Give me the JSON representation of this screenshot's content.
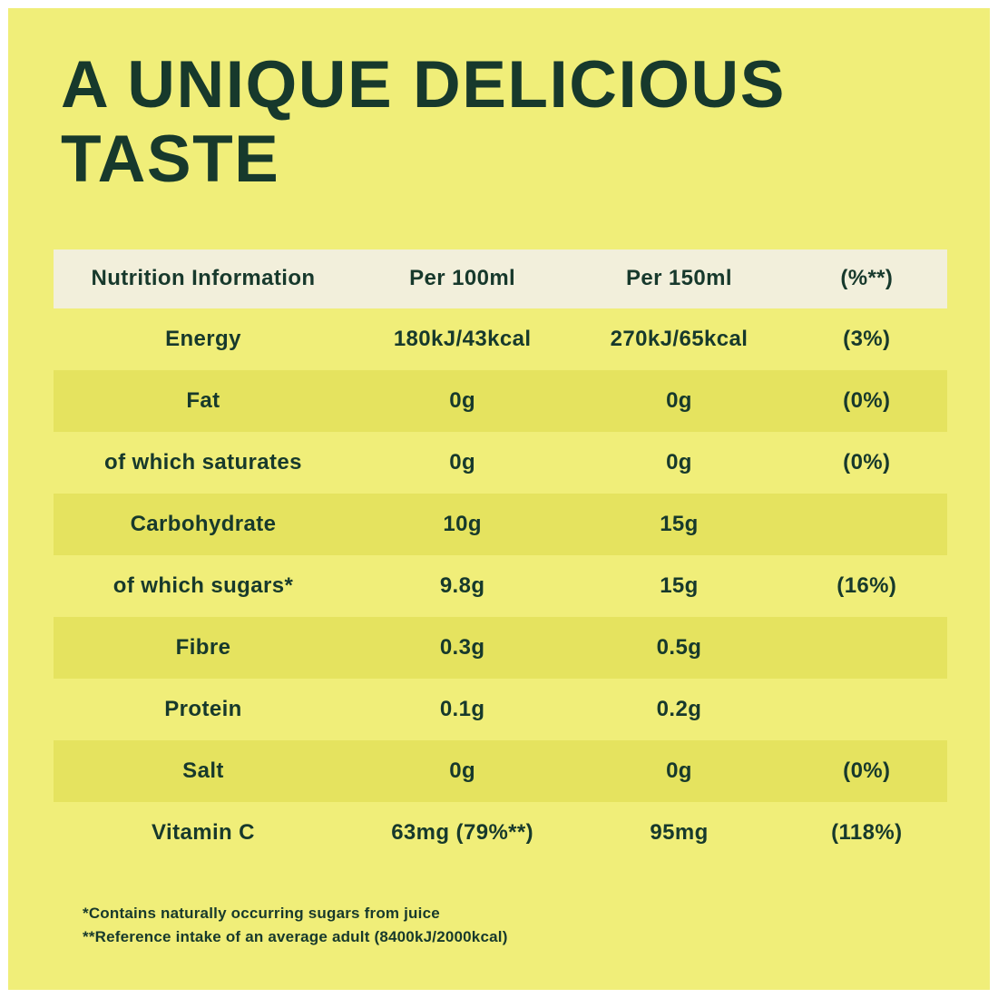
{
  "colors": {
    "background": "#f0ee79",
    "band": "#e5e35f",
    "header_bg": "#f2efdb",
    "text": "#17392c"
  },
  "title": {
    "line1": "A UNIQUE DELICIOUS",
    "line2": "TASTE"
  },
  "table": {
    "headers": [
      "Nutrition Information",
      "Per 100ml",
      "Per 150ml",
      "(%**)"
    ],
    "rows": [
      {
        "label": "Energy",
        "per100": "180kJ/43kcal",
        "per150": "270kJ/65kcal",
        "pct": "(3%)",
        "band": false
      },
      {
        "label": "Fat",
        "per100": "0g",
        "per150": "0g",
        "pct": "(0%)",
        "band": true
      },
      {
        "label": "of which saturates",
        "per100": "0g",
        "per150": "0g",
        "pct": "(0%)",
        "band": false
      },
      {
        "label": "Carbohydrate",
        "per100": "10g",
        "per150": "15g",
        "pct": "",
        "band": true
      },
      {
        "label": "of which sugars*",
        "per100": "9.8g",
        "per150": "15g",
        "pct": "(16%)",
        "band": false
      },
      {
        "label": "Fibre",
        "per100": "0.3g",
        "per150": "0.5g",
        "pct": "",
        "band": true
      },
      {
        "label": "Protein",
        "per100": "0.1g",
        "per150": "0.2g",
        "pct": "",
        "band": false
      },
      {
        "label": "Salt",
        "per100": "0g",
        "per150": "0g",
        "pct": "(0%)",
        "band": true
      },
      {
        "label": "Vitamin C",
        "per100": "63mg (79%**)",
        "per150": "95mg",
        "pct": "(118%)",
        "band": false
      }
    ]
  },
  "footnotes": [
    "*Contains naturally occurring sugars from juice",
    "**Reference intake of an average adult (8400kJ/2000kcal)"
  ]
}
